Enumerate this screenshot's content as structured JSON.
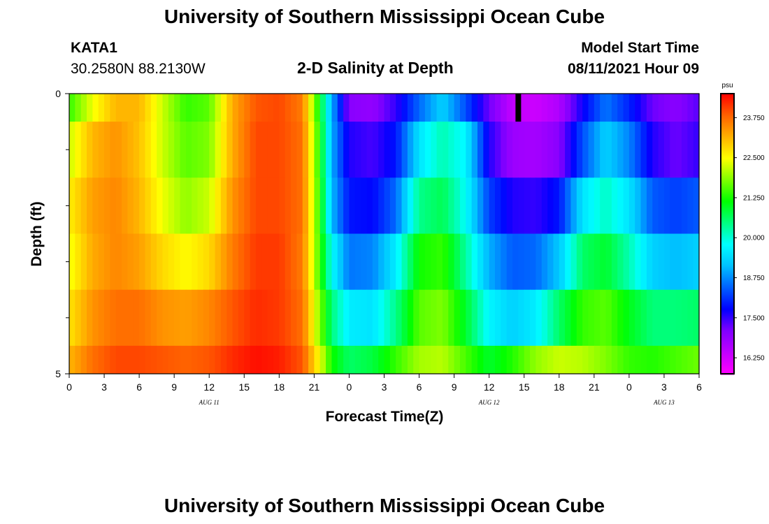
{
  "page": {
    "title_top": "University of Southern Mississippi Ocean Cube",
    "title_bottom": "University of Southern Mississippi Ocean Cube",
    "station": "KATA1",
    "coords": "30.2580N  88.2130W",
    "model_start_label": "Model Start Time",
    "model_start_value": "08/11/2021 Hour 09"
  },
  "colors": {
    "palette_low_to_high": [
      "#ff00ff",
      "#c000ff",
      "#8000ff",
      "#0000ff",
      "#0060ff",
      "#00c0ff",
      "#00ffff",
      "#00ff80",
      "#00ff00",
      "#80ff00",
      "#ffff00",
      "#ffb000",
      "#ff6000",
      "#ff0000"
    ],
    "marker": "#000000",
    "frame": "#000000"
  },
  "chart_data": {
    "type": "heatmap",
    "title": "2-D Salinity at Depth",
    "xlabel": "Forecast Time(Z)",
    "ylabel": "Depth (ft)",
    "x_ticks": [
      "0",
      "3",
      "6",
      "9",
      "12",
      "15",
      "18",
      "21",
      "0",
      "3",
      "6",
      "9",
      "12",
      "15",
      "18",
      "21",
      "0",
      "3",
      "6"
    ],
    "date_labels": [
      {
        "text": "AUG 11",
        "x_hour": 12
      },
      {
        "text": "AUG 12",
        "x_hour": 36
      },
      {
        "text": "AUG 13",
        "x_hour": 51
      }
    ],
    "x_range_hours": [
      0,
      54
    ],
    "y_range_ft": [
      0,
      5
    ],
    "y_tick_labels": [
      {
        "value": 0,
        "label": "0"
      },
      {
        "value": 5,
        "label": "5"
      }
    ],
    "y_minor_ticks": [
      1,
      2,
      3,
      4
    ],
    "depth_rows_ft": [
      0,
      1,
      2,
      3,
      4,
      5
    ],
    "row_edges_ft": [
      0,
      0.5,
      1.5,
      2.5,
      3.5,
      4.5,
      5
    ],
    "current_time_marker_hour": 38.5,
    "colorbar": {
      "unit": "psu",
      "min": 15.75,
      "max": 24.5,
      "tick_values": [
        16.25,
        17.5,
        18.75,
        20.0,
        21.25,
        22.5,
        23.75
      ],
      "tick_labels": [
        "16.250",
        "17.500",
        "18.750",
        "20.000",
        "21.250",
        "22.500",
        "23.750"
      ]
    },
    "series": [
      {
        "name": "0 ft",
        "hours": [
          0,
          2,
          4,
          6,
          8,
          10,
          12,
          14,
          16,
          18,
          20,
          21.5,
          22.5,
          24,
          26,
          28,
          30,
          32,
          34,
          36,
          38,
          40,
          42,
          44,
          46,
          48,
          50,
          52,
          54
        ],
        "values": [
          21.4,
          22.4,
          23.1,
          23.1,
          22.2,
          21.4,
          21.6,
          23.2,
          23.9,
          24.0,
          23.6,
          21.0,
          19.0,
          17.0,
          16.9,
          17.5,
          18.5,
          19.3,
          18.3,
          17.2,
          16.4,
          16.3,
          16.6,
          17.7,
          18.6,
          18.0,
          17.2,
          17.0,
          17.3
        ]
      },
      {
        "name": "1 ft",
        "hours": [
          0,
          2,
          4,
          6,
          8,
          10,
          12,
          14,
          16,
          18,
          20,
          21.5,
          22.5,
          24,
          26,
          28,
          30,
          32,
          34,
          36,
          38,
          40,
          42,
          44,
          46,
          48,
          50,
          52,
          54
        ],
        "values": [
          22.2,
          23.1,
          23.4,
          23.0,
          22.2,
          21.6,
          21.8,
          23.2,
          24.0,
          24.0,
          23.7,
          21.2,
          19.0,
          17.6,
          17.4,
          17.9,
          19.5,
          20.2,
          19.7,
          17.6,
          16.8,
          16.7,
          17.0,
          18.3,
          19.3,
          18.7,
          17.6,
          17.2,
          17.5
        ]
      },
      {
        "name": "2 ft",
        "hours": [
          0,
          2,
          4,
          6,
          8,
          10,
          12,
          14,
          16,
          18,
          20,
          21.5,
          22.5,
          24,
          26,
          28,
          30,
          32,
          34,
          36,
          38,
          40,
          42,
          44,
          46,
          48,
          50,
          52,
          54
        ],
        "values": [
          22.6,
          23.3,
          23.5,
          23.1,
          22.4,
          21.9,
          22.2,
          23.4,
          24.0,
          24.0,
          23.7,
          21.3,
          19.1,
          17.9,
          17.8,
          18.5,
          20.4,
          20.7,
          19.8,
          18.2,
          17.6,
          17.5,
          17.9,
          19.5,
          20.1,
          19.5,
          18.4,
          18.2,
          18.4
        ]
      },
      {
        "name": "3 ft",
        "hours": [
          0,
          2,
          4,
          6,
          8,
          10,
          12,
          14,
          16,
          18,
          20,
          21.5,
          22.5,
          24,
          26,
          28,
          30,
          32,
          34,
          36,
          38,
          40,
          42,
          44,
          46,
          48,
          50,
          52,
          54
        ],
        "values": [
          22.4,
          23.2,
          23.5,
          23.3,
          22.8,
          22.5,
          22.8,
          23.6,
          24.1,
          24.1,
          23.6,
          21.4,
          19.8,
          18.6,
          18.7,
          19.6,
          21.2,
          21.4,
          20.3,
          19.0,
          18.4,
          18.5,
          19.2,
          20.6,
          20.9,
          20.2,
          19.3,
          19.1,
          19.3
        ]
      },
      {
        "name": "4 ft",
        "hours": [
          0,
          2,
          4,
          6,
          8,
          10,
          12,
          14,
          16,
          18,
          20,
          21.5,
          22.5,
          24,
          26,
          28,
          30,
          32,
          34,
          36,
          38,
          40,
          42,
          44,
          46,
          48,
          50,
          52,
          54
        ],
        "values": [
          22.7,
          23.4,
          23.7,
          23.7,
          23.4,
          23.3,
          23.5,
          23.9,
          24.2,
          24.1,
          23.7,
          21.8,
          20.5,
          19.6,
          19.5,
          20.4,
          21.6,
          21.8,
          20.9,
          19.7,
          19.3,
          19.6,
          20.6,
          21.4,
          21.6,
          21.0,
          20.5,
          20.5,
          20.6
        ]
      },
      {
        "name": "5 ft",
        "hours": [
          0,
          2,
          4,
          6,
          8,
          10,
          12,
          14,
          16,
          18,
          20,
          21.5,
          22.5,
          24,
          26,
          28,
          30,
          32,
          34,
          36,
          38,
          40,
          42,
          44,
          46,
          48,
          50,
          52,
          54
        ],
        "values": [
          23.1,
          23.7,
          24.0,
          24.0,
          23.9,
          23.8,
          23.9,
          24.2,
          24.4,
          24.3,
          23.9,
          22.4,
          21.2,
          20.6,
          20.8,
          21.4,
          22.0,
          22.1,
          21.5,
          20.9,
          21.3,
          21.9,
          22.2,
          22.1,
          21.8,
          21.4,
          21.3,
          21.5,
          21.7
        ]
      }
    ]
  }
}
